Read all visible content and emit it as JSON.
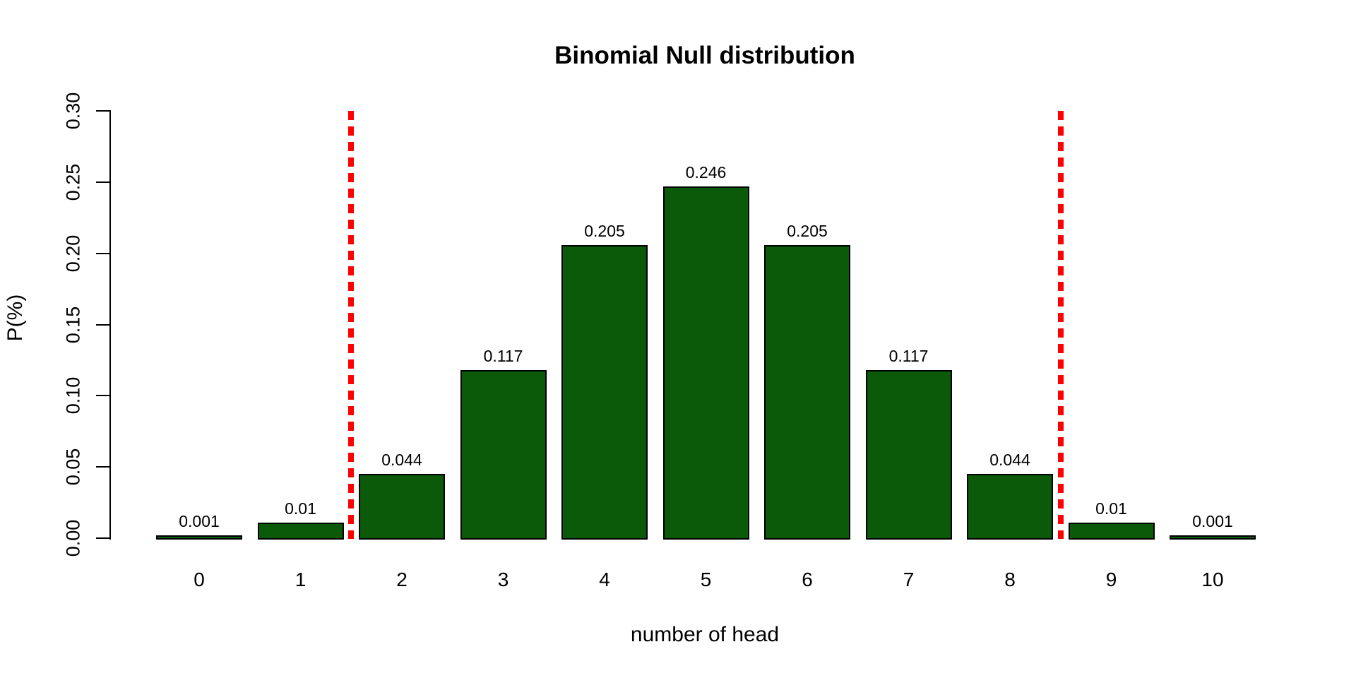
{
  "chart_data": {
    "type": "bar",
    "title": "Binomial Null distribution",
    "xlabel": "number of head",
    "ylabel": "P(%)",
    "categories": [
      "0",
      "1",
      "2",
      "3",
      "4",
      "5",
      "6",
      "7",
      "8",
      "9",
      "10"
    ],
    "values": [
      0.001,
      0.01,
      0.044,
      0.117,
      0.205,
      0.246,
      0.205,
      0.117,
      0.044,
      0.01,
      0.001
    ],
    "value_labels": [
      "0.001",
      "0.01",
      "0.044",
      "0.117",
      "0.205",
      "0.246",
      "0.205",
      "0.117",
      "0.044",
      "0.01",
      "0.001"
    ],
    "ylim": [
      0,
      0.3
    ],
    "yticks": [
      "0.00",
      "0.05",
      "0.10",
      "0.15",
      "0.20",
      "0.25",
      "0.30"
    ],
    "grid": false,
    "legend": null,
    "bar_fill_color": "#0a5a0a",
    "bar_border_color": "#000000",
    "vlines": {
      "positions": [
        1.5,
        8.5
      ],
      "color": "#ff0000",
      "style": "dotted"
    }
  }
}
